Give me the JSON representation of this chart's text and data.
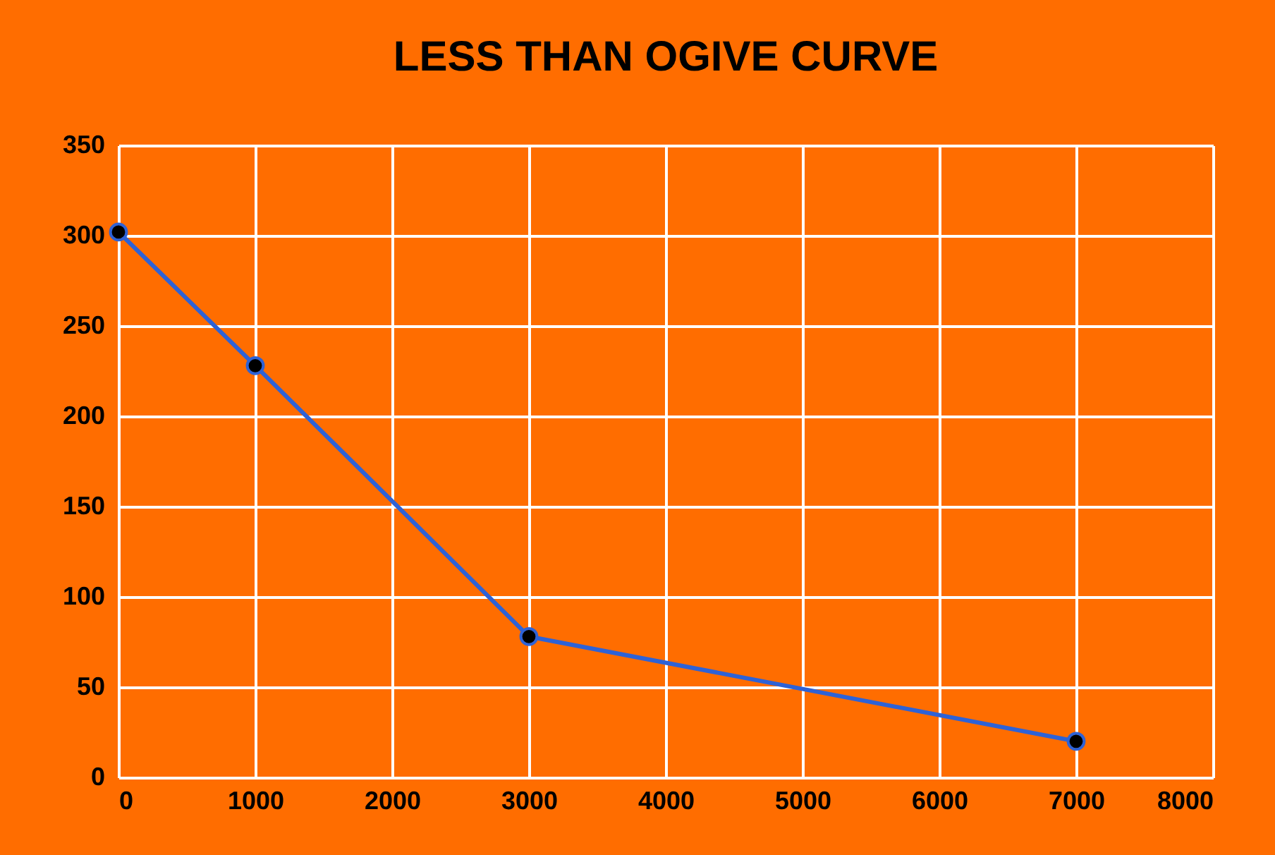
{
  "chart_data": {
    "type": "line",
    "title": "LESS THAN OGIVE CURVE",
    "x": [
      0,
      1000,
      3000,
      7000
    ],
    "series": [
      {
        "color": "#2e62d6",
        "values": [
          302,
          228,
          78,
          20
        ]
      }
    ],
    "xlim": [
      0,
      8000
    ],
    "xticks": [
      0,
      1000,
      2000,
      3000,
      4000,
      5000,
      6000,
      7000,
      8000
    ],
    "ylim": [
      0,
      350
    ],
    "yticks": [
      0,
      50,
      100,
      150,
      200,
      250,
      300,
      350
    ],
    "grid": true,
    "marker": "circle",
    "line_style": "solid"
  }
}
